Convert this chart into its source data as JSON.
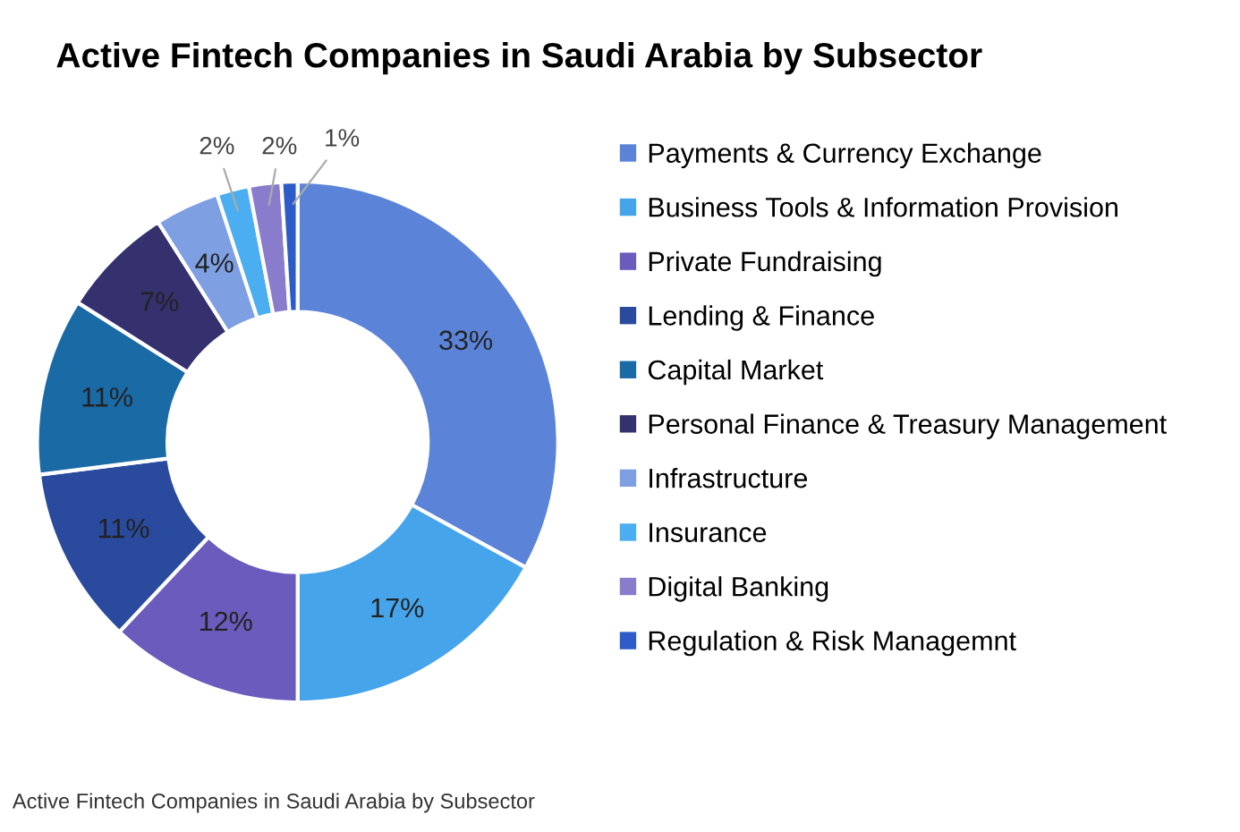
{
  "chart_data": {
    "type": "donut",
    "title": "Active Fintech Companies in Saudi Arabia by Subsector",
    "categories": [
      "Payments & Currency Exchange",
      "Business Tools & Information Provision",
      "Private Fundraising",
      "Lending & Finance",
      "Capital Market",
      "Personal Finance & Treasury Management",
      "Infrastructure",
      "Insurance",
      "Digital Banking",
      "Regulation & Risk Managemnt"
    ],
    "values": [
      33,
      17,
      12,
      11,
      11,
      7,
      4,
      2,
      2,
      1
    ],
    "colors": [
      "#5b84d9",
      "#45a4ea",
      "#6a5bbd",
      "#2a4a9e",
      "#1a6aa6",
      "#35306e",
      "#7f9fe3",
      "#4aaef0",
      "#8a7ccc",
      "#2d5cc8"
    ],
    "value_labels": [
      "33%",
      "17%",
      "12%",
      "11%",
      "11%",
      "7%",
      "4%",
      "2%",
      "2%",
      "1%"
    ],
    "legend": "right",
    "annotations": [
      "Active Fintech Companies in Saudi Arabia by Subsector"
    ]
  }
}
